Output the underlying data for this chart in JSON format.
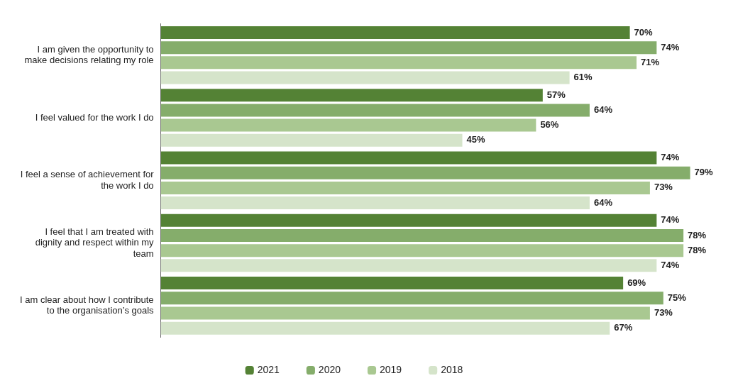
{
  "chart_data": {
    "type": "bar",
    "orientation": "horizontal",
    "tick_labels": "y",
    "categories": [
      "I am given the opportunity to make decisions relating my role",
      "I feel valued for the work I do",
      "I feel a sense of achievement for the work I do",
      "I feel that I am treated with dignity and respect within my team",
      "I am clear about how I contribute to the organisation’s goals"
    ],
    "series": [
      {
        "name": "2021",
        "color": "#548235",
        "values": [
          70,
          57,
          74,
          74,
          69
        ],
        "value_labels": [
          "70%",
          "57%",
          "74%",
          "74%",
          "69%"
        ]
      },
      {
        "name": "2020",
        "color": "#85ad6b",
        "values": [
          74,
          64,
          79,
          78,
          75
        ],
        "value_labels": [
          "74%",
          "64%",
          "79%",
          "78%",
          "75%"
        ]
      },
      {
        "name": "2019",
        "color": "#a9c891",
        "values": [
          71,
          56,
          73,
          78,
          73
        ],
        "value_labels": [
          "71%",
          "56%",
          "73%",
          "78%",
          "73%"
        ]
      },
      {
        "name": "2018",
        "color": "#d5e4ca",
        "values": [
          61,
          45,
          64,
          74,
          67
        ],
        "value_labels": [
          "61%",
          "45%",
          "64%",
          "74%",
          "67%"
        ]
      }
    ],
    "legend": "bottom",
    "grid": false
  }
}
